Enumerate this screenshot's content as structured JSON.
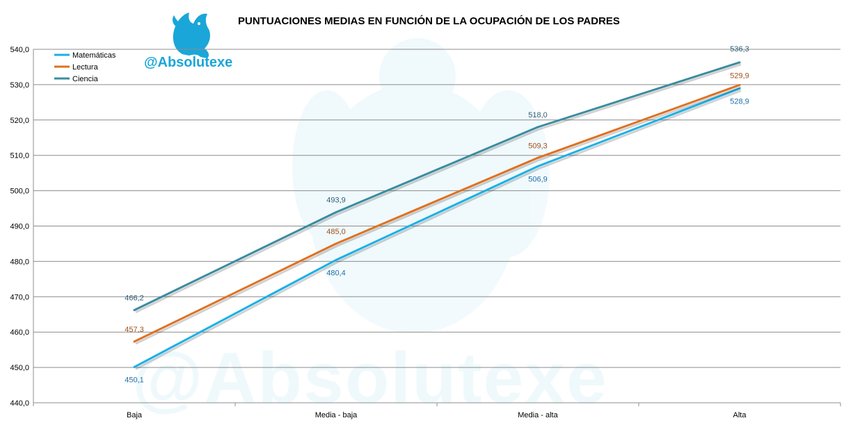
{
  "watermark_text": "@Absolutexe",
  "logo": {
    "icon": "griffin-logo-icon",
    "text": "@Absolutexe",
    "color": "#1aa6d8"
  },
  "chart_data": {
    "type": "line",
    "title": "PUNTUACIONES  MEDIAS EN FUNCIÓN DE LA OCUPACIÓN DE LOS PADRES",
    "xlabel": "",
    "ylabel": "",
    "categories": [
      "Baja",
      "Media - baja",
      "Media - alta",
      "Alta"
    ],
    "ylim": [
      440,
      540
    ],
    "yticks": [
      "440,0",
      "450,0",
      "460,0",
      "470,0",
      "480,0",
      "490,0",
      "500,0",
      "510,0",
      "520,0",
      "530,0",
      "540,0"
    ],
    "grid": true,
    "legend_position": "top-left",
    "series": [
      {
        "name": "Matemáticas",
        "color": "#1ab0e6",
        "values": [
          450.1,
          480.4,
          506.9,
          528.9
        ],
        "labels": [
          "450,1",
          "480,4",
          "506,9",
          "528,9"
        ]
      },
      {
        "name": "Lectura",
        "color": "#e07020",
        "values": [
          457.3,
          485.0,
          509.3,
          529.9
        ],
        "labels": [
          "457,3",
          "485,0",
          "509,3",
          "529,9"
        ]
      },
      {
        "name": "Ciencia",
        "color": "#3a8ca0",
        "values": [
          466.2,
          493.9,
          518.0,
          536.3
        ],
        "labels": [
          "466,2",
          "493,9",
          "518,0",
          "536,3"
        ]
      }
    ]
  }
}
